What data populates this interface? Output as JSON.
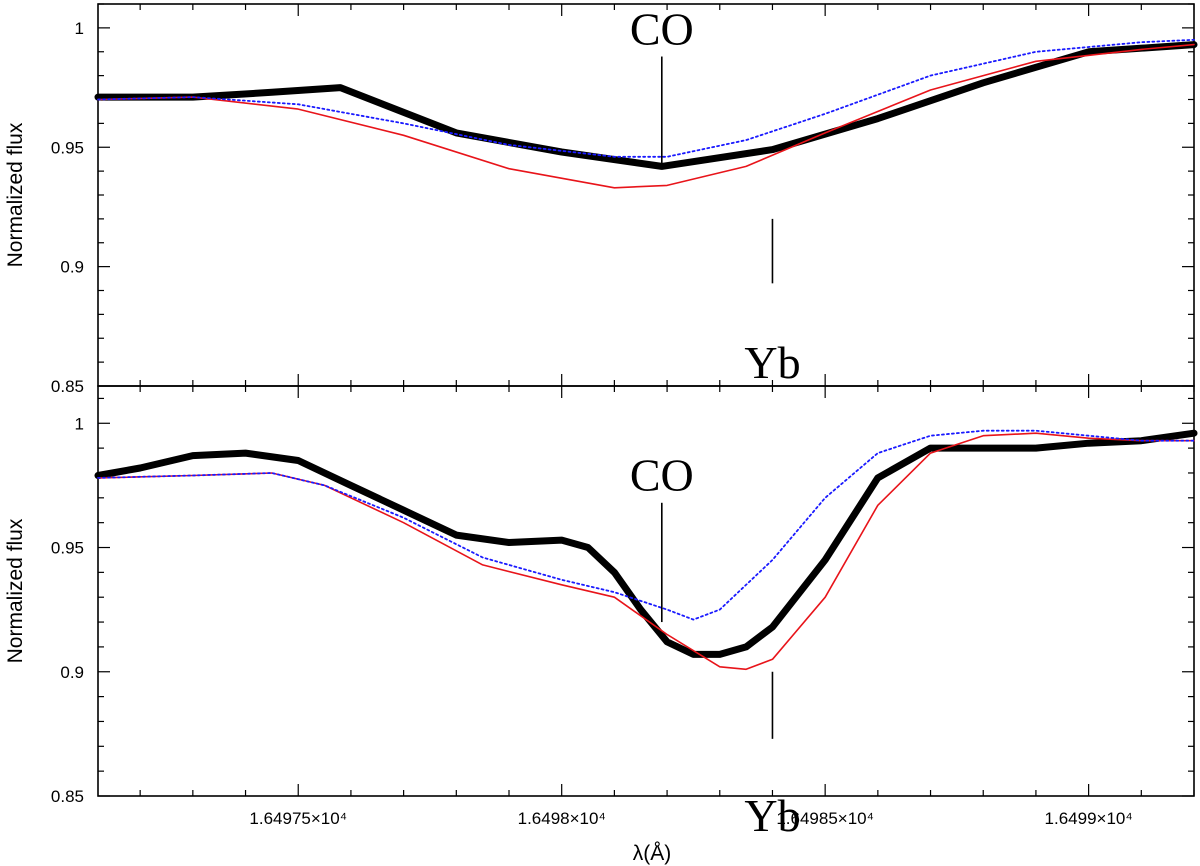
{
  "chart_data": {
    "type": "line",
    "grid": false,
    "legend": "none",
    "xlabel": "λ(Å)",
    "x_ticks": [
      {
        "value": 16497.5,
        "label": "1.64975×10⁴"
      },
      {
        "value": 16498.0,
        "label": "1.6498×10⁴"
      },
      {
        "value": 16498.5,
        "label": "1.64985×10⁴"
      },
      {
        "value": 16499.0,
        "label": "1.6499×10⁴"
      }
    ],
    "xlim": [
      16497.12,
      16499.2
    ],
    "colors": {
      "observed": "#000000",
      "model_red": "#e8141a",
      "model_blue": "#1a1aff"
    },
    "panels": [
      {
        "ylabel": "Normalized flux",
        "ylim": [
          0.85,
          1.01
        ],
        "yticks": [
          {
            "value": 0.85,
            "label": "0.85"
          },
          {
            "value": 0.9,
            "label": "0.9"
          },
          {
            "value": 0.95,
            "label": "0.95"
          },
          {
            "value": 1.0,
            "label": "1"
          }
        ],
        "series": [
          {
            "style": "observed",
            "x": [
              16497.12,
              16497.3,
              16497.45,
              16497.58,
              16497.8,
              16498.0,
              16498.19,
              16498.4,
              16498.6,
              16498.8,
              16499.0,
              16499.2
            ],
            "y": [
              0.971,
              0.971,
              0.973,
              0.975,
              0.956,
              0.948,
              0.942,
              0.949,
              0.962,
              0.977,
              0.99,
              0.993
            ]
          },
          {
            "style": "model_red",
            "x": [
              16497.12,
              16497.3,
              16497.5,
              16497.7,
              16497.9,
              16498.1,
              16498.2,
              16498.35,
              16498.5,
              16498.7,
              16498.9,
              16499.1,
              16499.2
            ],
            "y": [
              0.97,
              0.971,
              0.966,
              0.955,
              0.941,
              0.933,
              0.934,
              0.942,
              0.956,
              0.974,
              0.986,
              0.991,
              0.993
            ]
          },
          {
            "style": "model_blue",
            "x": [
              16497.12,
              16497.3,
              16497.5,
              16497.7,
              16497.9,
              16498.1,
              16498.2,
              16498.35,
              16498.5,
              16498.7,
              16498.9,
              16499.1,
              16499.2
            ],
            "y": [
              0.97,
              0.971,
              0.968,
              0.96,
              0.951,
              0.946,
              0.946,
              0.953,
              0.964,
              0.98,
              0.99,
              0.994,
              0.995
            ]
          }
        ],
        "annotations": [
          {
            "text": "CO",
            "x": 16498.19,
            "line_y": [
              0.942,
              0.988
            ],
            "text_y": 0.993,
            "anchor": "above"
          },
          {
            "text": "Yb",
            "x": 16498.4,
            "line_y": [
              0.893,
              0.92
            ],
            "text_y": 0.866,
            "anchor": "below"
          }
        ]
      },
      {
        "ylabel": "Normalized flux",
        "ylim": [
          0.85,
          1.015
        ],
        "yticks": [
          {
            "value": 0.85,
            "label": "0.85"
          },
          {
            "value": 0.9,
            "label": "0.9"
          },
          {
            "value": 0.95,
            "label": "0.95"
          },
          {
            "value": 1.0,
            "label": "1"
          }
        ],
        "series": [
          {
            "style": "observed",
            "x": [
              16497.12,
              16497.2,
              16497.3,
              16497.4,
              16497.5,
              16497.6,
              16497.7,
              16497.8,
              16497.9,
              16498.0,
              16498.05,
              16498.1,
              16498.15,
              16498.2,
              16498.25,
              16498.3,
              16498.35,
              16498.4,
              16498.5,
              16498.6,
              16498.7,
              16498.8,
              16498.9,
              16499.0,
              16499.1,
              16499.2
            ],
            "y": [
              0.979,
              0.982,
              0.987,
              0.988,
              0.985,
              0.975,
              0.965,
              0.955,
              0.952,
              0.953,
              0.95,
              0.94,
              0.925,
              0.912,
              0.907,
              0.907,
              0.91,
              0.918,
              0.945,
              0.978,
              0.99,
              0.99,
              0.99,
              0.992,
              0.993,
              0.996
            ]
          },
          {
            "style": "model_red",
            "x": [
              16497.12,
              16497.3,
              16497.45,
              16497.55,
              16497.7,
              16497.85,
              16498.0,
              16498.1,
              16498.2,
              16498.3,
              16498.35,
              16498.4,
              16498.5,
              16498.6,
              16498.7,
              16498.8,
              16498.9,
              16499.0,
              16499.1,
              16499.2
            ],
            "y": [
              0.978,
              0.979,
              0.98,
              0.975,
              0.96,
              0.943,
              0.935,
              0.93,
              0.915,
              0.902,
              0.901,
              0.905,
              0.93,
              0.967,
              0.988,
              0.995,
              0.996,
              0.994,
              0.993,
              0.993
            ]
          },
          {
            "style": "model_blue",
            "x": [
              16497.12,
              16497.3,
              16497.45,
              16497.55,
              16497.7,
              16497.85,
              16498.0,
              16498.1,
              16498.2,
              16498.25,
              16498.3,
              16498.4,
              16498.5,
              16498.6,
              16498.7,
              16498.8,
              16498.9,
              16499.0,
              16499.1,
              16499.2
            ],
            "y": [
              0.978,
              0.979,
              0.98,
              0.975,
              0.962,
              0.946,
              0.937,
              0.932,
              0.925,
              0.921,
              0.925,
              0.945,
              0.97,
              0.988,
              0.995,
              0.997,
              0.997,
              0.995,
              0.993,
              0.993
            ]
          }
        ],
        "annotations": [
          {
            "text": "CO",
            "x": 16498.19,
            "line_y": [
              0.92,
              0.968
            ],
            "text_y": 0.973,
            "anchor": "above"
          },
          {
            "text": "Yb",
            "x": 16498.4,
            "line_y": [
              0.873,
              0.9
            ],
            "text_y": 0.848,
            "anchor": "below"
          }
        ]
      }
    ]
  }
}
